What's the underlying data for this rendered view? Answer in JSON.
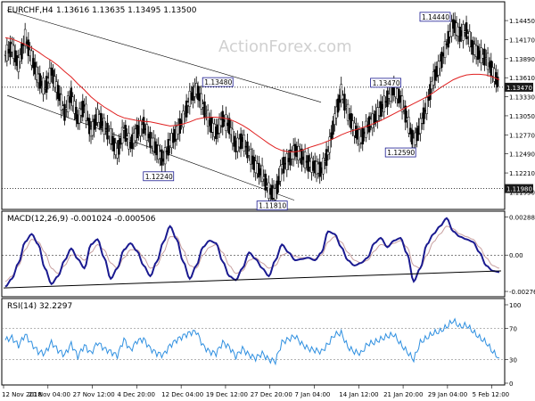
{
  "watermark": "ActionForex.com",
  "chart_data": [
    {
      "type": "line",
      "subtype": "candlestick-with-moving-average",
      "title": "EURCHF,H4",
      "ohlc_label": "1.13616 1.13635 1.13495 1.13500",
      "y_ticks": [
        1.1445,
        1.1417,
        1.1389,
        1.1361,
        1.1333,
        1.1305,
        1.1277,
        1.1249,
        1.1221,
        1.1193
      ],
      "y_tick_labels": [
        "1.14450",
        "1.14170",
        "1.13890",
        "1.13610",
        "1.13330",
        "1.13050",
        "1.12770",
        "1.12490",
        "1.12210",
        "1.11930"
      ],
      "ylim": [
        1.117,
        1.147
      ],
      "current_price_label": "1.13470",
      "current_price": 1.1347,
      "support_label": "1.11980",
      "support": 1.1198,
      "annotations": [
        {
          "label": "1.13480",
          "value": 1.1348,
          "x": 0.43
        },
        {
          "label": "1.12240",
          "value": 1.1224,
          "x": 0.31
        },
        {
          "label": "1.11810",
          "value": 1.1181,
          "x": 0.54
        },
        {
          "label": "1.13470",
          "value": 1.1347,
          "x": 0.77
        },
        {
          "label": "1.12590",
          "value": 1.1259,
          "x": 0.8
        },
        {
          "label": "1.14440",
          "value": 1.1444,
          "x": 0.87
        }
      ],
      "close_series": [
        1.1395,
        1.1405,
        1.138,
        1.142,
        1.139,
        1.136,
        1.1345,
        1.137,
        1.134,
        1.131,
        1.1335,
        1.13,
        1.132,
        1.128,
        1.1305,
        1.129,
        1.1275,
        1.125,
        1.1285,
        1.1262,
        1.1282,
        1.1291,
        1.127,
        1.1255,
        1.124,
        1.1265,
        1.128,
        1.13,
        1.133,
        1.1345,
        1.132,
        1.1295,
        1.128,
        1.13,
        1.129,
        1.126,
        1.127,
        1.125,
        1.123,
        1.122,
        1.1195,
        1.119,
        1.123,
        1.124,
        1.1255,
        1.1245,
        1.1235,
        1.123,
        1.1225,
        1.125,
        1.13,
        1.134,
        1.131,
        1.1285,
        1.127,
        1.129,
        1.13,
        1.1315,
        1.133,
        1.1345,
        1.133,
        1.13,
        1.1265,
        1.129,
        1.132,
        1.136,
        1.138,
        1.141,
        1.144,
        1.1425,
        1.143,
        1.1405,
        1.1395,
        1.139,
        1.137,
        1.135
      ],
      "ma_series": [
        1.142,
        1.1418,
        1.1414,
        1.141,
        1.1405,
        1.1399,
        1.1392,
        1.1386,
        1.1379,
        1.137,
        1.1362,
        1.1352,
        1.1343,
        1.1333,
        1.1325,
        1.1318,
        1.1312,
        1.1306,
        1.1302,
        1.13,
        1.1298,
        1.1297,
        1.1296,
        1.1294,
        1.1292,
        1.129,
        1.1291,
        1.1293,
        1.1296,
        1.13,
        1.1302,
        1.1303,
        1.1303,
        1.1302,
        1.13,
        1.1296,
        1.1291,
        1.1285,
        1.1278,
        1.1271,
        1.1264,
        1.1258,
        1.1254,
        1.1252,
        1.1252,
        1.1254,
        1.1258,
        1.1261,
        1.1264,
        1.1268,
        1.1272,
        1.1277,
        1.1281,
        1.1284,
        1.1287,
        1.129,
        1.1294,
        1.1298,
        1.1303,
        1.1308,
        1.1313,
        1.1318,
        1.1323,
        1.1328,
        1.1333,
        1.1339,
        1.1346,
        1.1352,
        1.1358,
        1.1362,
        1.1365,
        1.1366,
        1.1366,
        1.1365,
        1.1362,
        1.1358
      ]
    },
    {
      "type": "line",
      "title": "MACD(12,26,9) -0.001024 -0.000506",
      "y_tick_labels": [
        "0.002887",
        "0.00",
        "-0.002764"
      ],
      "y_ticks": [
        0.002887,
        0.0,
        -0.002764
      ],
      "ylim": [
        -0.0031,
        0.0032
      ],
      "macd": [
        -0.0024,
        -0.0018,
        -0.0006,
        0.001,
        0.0016,
        0.0008,
        -0.001,
        -0.0022,
        -0.0016,
        -0.0004,
        0.0005,
        -0.0003,
        -0.001,
        0.0008,
        0.0012,
        -0.0002,
        -0.0018,
        -0.001,
        0.0004,
        0.0009,
        0.0003,
        -0.0008,
        -0.0016,
        -0.0005,
        0.001,
        0.0022,
        0.0012,
        -0.0005,
        -0.0018,
        -0.0008,
        0.0006,
        0.0011,
        0.0009,
        -0.0005,
        -0.0016,
        -0.0019,
        -0.001,
        0.0002,
        -0.0003,
        -0.001,
        -0.0016,
        -0.0004,
        0.0008,
        0.0002,
        -0.0004,
        -0.0003,
        -0.0002,
        -0.0004,
        0.0002,
        0.0018,
        0.0016,
        0.0006,
        -0.0004,
        -0.0008,
        -0.0006,
        -0.0002,
        0.0009,
        0.0013,
        0.0006,
        0.0011,
        0.0013,
        0.0001,
        -0.002,
        -0.001,
        0.0008,
        0.0016,
        0.0022,
        0.0028,
        0.0018,
        0.0014,
        0.0012,
        0.001,
        0.0002,
        -0.0008,
        -0.0012,
        -0.0013
      ],
      "signal": [
        -0.002,
        -0.0016,
        -0.0008,
        0.0004,
        0.0012,
        0.001,
        0.0002,
        -0.001,
        -0.0014,
        -0.0008,
        0.0,
        0.0,
        -0.0004,
        0.0002,
        0.0008,
        0.0004,
        -0.0006,
        -0.001,
        -0.0002,
        0.0004,
        0.0004,
        -0.0002,
        -0.001,
        -0.0008,
        0.0002,
        0.0014,
        0.0014,
        0.0004,
        -0.0008,
        -0.001,
        0.0,
        0.0006,
        0.0008,
        0.0002,
        -0.0008,
        -0.0014,
        -0.0012,
        -0.0004,
        -0.0002,
        -0.0006,
        -0.001,
        -0.0008,
        0.0,
        0.0002,
        -0.0001,
        -0.0002,
        -0.0002,
        -0.0003,
        0.0,
        0.001,
        0.0014,
        0.001,
        0.0002,
        -0.0004,
        -0.0006,
        -0.0004,
        0.0003,
        0.0008,
        0.0007,
        0.0009,
        0.0011,
        0.0006,
        -0.0008,
        -0.001,
        0.0,
        0.001,
        0.0016,
        0.0022,
        0.002,
        0.0016,
        0.0014,
        0.0012,
        0.0006,
        -0.0002,
        -0.0008,
        -0.001
      ],
      "trendline_label": "",
      "trendline": [
        -0.0025,
        -0.0012
      ]
    },
    {
      "type": "line",
      "title": "RSI(14) 32.2297",
      "y_tick_labels": [
        "100",
        "70",
        "30",
        "0"
      ],
      "y_ticks": [
        100,
        70,
        30,
        0
      ],
      "ylim": [
        0,
        100
      ],
      "rsi": [
        55,
        58,
        48,
        62,
        50,
        40,
        38,
        52,
        42,
        36,
        50,
        34,
        48,
        38,
        52,
        44,
        40,
        35,
        56,
        42,
        54,
        56,
        44,
        38,
        36,
        48,
        55,
        60,
        64,
        66,
        48,
        40,
        38,
        52,
        46,
        34,
        44,
        36,
        32,
        38,
        30,
        28,
        52,
        56,
        60,
        50,
        44,
        42,
        40,
        50,
        62,
        64,
        46,
        40,
        38,
        50,
        52,
        56,
        60,
        62,
        50,
        40,
        30,
        52,
        58,
        64,
        66,
        72,
        80,
        72,
        74,
        66,
        58,
        52,
        40,
        32
      ]
    }
  ],
  "x_axis": {
    "labels": [
      "12 Nov 2018",
      "20 Nov 04:00",
      "27 Nov 12:00",
      "4 Dec 20:00",
      "12 Dec 04:00",
      "19 Dec 12:00",
      "27 Dec 20:00",
      "7 Jan 04:00",
      "14 Jan 12:00",
      "21 Jan 20:00",
      "29 Jan 04:00",
      "5 Feb 12:00"
    ]
  }
}
